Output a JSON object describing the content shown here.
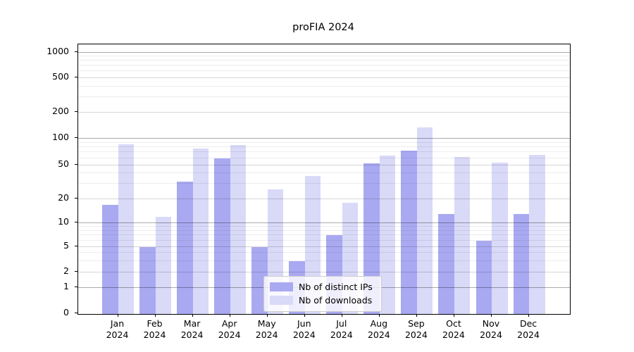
{
  "title": "proFIA 2024",
  "chart_data": {
    "type": "bar",
    "title": "proFIA 2024",
    "categories": [
      "Jan",
      "Feb",
      "Mar",
      "Apr",
      "May",
      "Jun",
      "Jul",
      "Aug",
      "Sep",
      "Oct",
      "Nov",
      "Dec"
    ],
    "category_year": "2024",
    "series": [
      {
        "name": "Nb of distinct IPs",
        "color": "#a9a9f1",
        "values": [
          17,
          5,
          32,
          60,
          5,
          3,
          7,
          52,
          73,
          13,
          6,
          13
        ]
      },
      {
        "name": "Nb of downloads",
        "color": "#d9d9f8",
        "values": [
          86,
          12,
          77,
          84,
          26,
          37,
          18,
          64,
          135,
          62,
          53,
          65
        ]
      }
    ],
    "y_ticks": [
      1000,
      500,
      200,
      100,
      50,
      20,
      10,
      5,
      2,
      1,
      0
    ],
    "y_scale": "log-like (symlog), 0 at baseline",
    "ylim": [
      0,
      1000
    ],
    "grid": "horizontal major and minor lines",
    "legend_position": "lower center"
  }
}
